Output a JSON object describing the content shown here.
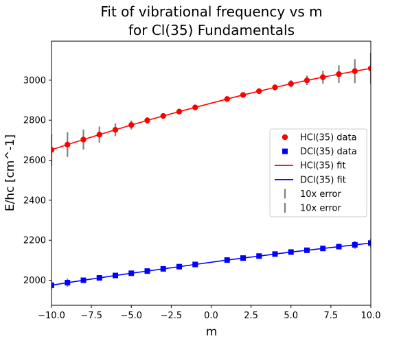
{
  "chart_data": {
    "type": "scatter",
    "title_line1": "Fit of vibrational frequency vs m",
    "title_line2": "for Cl(35) Fundamentals",
    "xlabel": "m",
    "ylabel": "E/hc [cm^-1]",
    "xlim": [
      -10,
      10
    ],
    "ylim": [
      1875,
      3195
    ],
    "x_ticks": [
      -10.0,
      -7.5,
      -5.0,
      -2.5,
      0.0,
      2.5,
      5.0,
      7.5,
      10.0
    ],
    "x_tick_labels": [
      "−10.0",
      "−7.5",
      "−5.0",
      "−2.5",
      "0.0",
      "2.5",
      "5.0",
      "7.5",
      "10.0"
    ],
    "y_ticks": [
      2000,
      2200,
      2400,
      2600,
      2800,
      3000
    ],
    "y_tick_labels": [
      "2000",
      "2200",
      "2400",
      "2600",
      "2800",
      "3000"
    ],
    "grid": false,
    "legend_position": "right",
    "series": [
      {
        "name": "HCl(35) data",
        "kind": "points",
        "marker": "circle",
        "color": "#ff0000",
        "x": [
          -10,
          -9,
          -8,
          -7,
          -6,
          -5,
          -4,
          -3,
          -2,
          -1,
          1,
          2,
          3,
          4,
          5,
          6,
          7,
          8,
          9,
          10
        ],
        "y": [
          2652,
          2678,
          2703,
          2728,
          2752,
          2776,
          2799,
          2821,
          2843,
          2864,
          2906,
          2926,
          2945,
          2964,
          2982,
          2999,
          3015,
          3030,
          3045,
          3059
        ],
        "err": [
          80,
          62,
          50,
          40,
          32,
          22,
          16,
          12,
          10,
          8,
          8,
          10,
          12,
          14,
          18,
          24,
          32,
          44,
          60,
          78
        ]
      },
      {
        "name": "DCl(35) data",
        "kind": "points",
        "marker": "square",
        "color": "#0000ff",
        "x": [
          -10,
          -9,
          -8,
          -7,
          -6,
          -5,
          -4,
          -3,
          -2,
          -1,
          1,
          2,
          3,
          4,
          5,
          6,
          7,
          8,
          9,
          10
        ],
        "y": [
          1975,
          1988,
          2000,
          2012,
          2024,
          2035,
          2046,
          2057,
          2068,
          2079,
          2101,
          2111,
          2121,
          2131,
          2141,
          2150,
          2159,
          2168,
          2177,
          2186
        ],
        "err": [
          22,
          20,
          12,
          10,
          8,
          6,
          6,
          5,
          5,
          4,
          5,
          6,
          6,
          7,
          8,
          10,
          12,
          14,
          20,
          22
        ]
      },
      {
        "name": "HCl(35) fit",
        "kind": "line",
        "color": "#ff0000",
        "x": [
          -10,
          -9,
          -8,
          -7,
          -6,
          -5,
          -4,
          -3,
          -2,
          -1,
          0,
          1,
          2,
          3,
          4,
          5,
          6,
          7,
          8,
          9,
          10
        ],
        "y": [
          2652,
          2678,
          2703,
          2728,
          2752,
          2776,
          2799,
          2821,
          2843,
          2864,
          2885,
          2906,
          2926,
          2945,
          2964,
          2982,
          2999,
          3015,
          3030,
          3045,
          3059
        ]
      },
      {
        "name": "DCl(35) fit",
        "kind": "line",
        "color": "#0000ff",
        "x": [
          -10,
          -9,
          -8,
          -7,
          -6,
          -5,
          -4,
          -3,
          -2,
          -1,
          0,
          1,
          2,
          3,
          4,
          5,
          6,
          7,
          8,
          9,
          10
        ],
        "y": [
          1975,
          1988,
          2000,
          2012,
          2024,
          2035,
          2046,
          2057,
          2068,
          2079,
          2090,
          2101,
          2111,
          2121,
          2131,
          2141,
          2150,
          2159,
          2168,
          2177,
          2186
        ]
      }
    ],
    "error_color": "#808080",
    "legend": [
      {
        "label": "HCl(35) data",
        "symbol": "circle",
        "color": "#ff0000"
      },
      {
        "label": "DCl(35) data",
        "symbol": "square",
        "color": "#0000ff"
      },
      {
        "label": "HCl(35) fit",
        "symbol": "line",
        "color": "#ff0000"
      },
      {
        "label": "DCl(35) fit",
        "symbol": "line",
        "color": "#0000ff"
      },
      {
        "label": "10x error",
        "symbol": "errorbar",
        "color": "#808080"
      },
      {
        "label": "10x error",
        "symbol": "errorbar",
        "color": "#808080"
      }
    ]
  }
}
